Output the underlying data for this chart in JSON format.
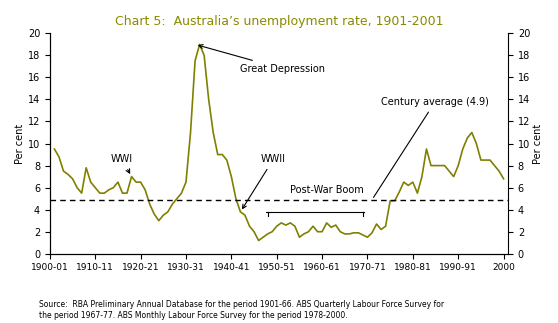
{
  "title": "Chart 5:  Australia’s unemployment rate, 1901-2001",
  "title_color": "#8B8B00",
  "ylabel_left": "Per cent",
  "ylabel_right": "Per cent",
  "source_text": "Source:  RBA Preliminary Annual Database for the period 1901-66. ABS Quarterly Labour Force Survey for\nthe period 1967-77. ABS Monthly Labour Force Survey for the period 1978-2000.",
  "line_color": "#808000",
  "average_line": 4.9,
  "ylim": [
    0,
    20
  ],
  "yticks": [
    0,
    2,
    4,
    6,
    8,
    10,
    12,
    14,
    16,
    18,
    20
  ],
  "xtick_labels": [
    "1900-01",
    "1910-11",
    "1920-21",
    "1930-31",
    "1940-41",
    "1950-51",
    "1960-61",
    "1970-71",
    "1980-81",
    "1990-91",
    "2000"
  ],
  "data": {
    "years": [
      1901,
      1902,
      1903,
      1904,
      1905,
      1906,
      1907,
      1908,
      1909,
      1910,
      1911,
      1912,
      1913,
      1914,
      1915,
      1916,
      1917,
      1918,
      1919,
      1920,
      1921,
      1922,
      1923,
      1924,
      1925,
      1926,
      1927,
      1928,
      1929,
      1930,
      1931,
      1932,
      1933,
      1934,
      1935,
      1936,
      1937,
      1938,
      1939,
      1940,
      1941,
      1942,
      1943,
      1944,
      1945,
      1946,
      1947,
      1948,
      1949,
      1950,
      1951,
      1952,
      1953,
      1954,
      1955,
      1956,
      1957,
      1958,
      1959,
      1960,
      1961,
      1962,
      1963,
      1964,
      1965,
      1966,
      1967,
      1968,
      1969,
      1970,
      1971,
      1972,
      1973,
      1974,
      1975,
      1976,
      1977,
      1978,
      1979,
      1980,
      1981,
      1982,
      1983,
      1984,
      1985,
      1986,
      1987,
      1988,
      1989,
      1990,
      1991,
      1992,
      1993,
      1994,
      1995,
      1996,
      1997,
      1998,
      1999,
      2000
    ],
    "values": [
      9.5,
      8.8,
      7.5,
      7.2,
      6.8,
      6.0,
      5.5,
      7.8,
      6.5,
      6.0,
      5.5,
      5.5,
      5.8,
      6.0,
      6.5,
      5.5,
      5.5,
      7.0,
      6.5,
      6.5,
      5.8,
      4.5,
      3.6,
      3.0,
      3.5,
      3.8,
      4.5,
      5.0,
      5.5,
      6.5,
      11.0,
      17.5,
      19.0,
      18.0,
      14.0,
      11.0,
      9.0,
      9.0,
      8.5,
      7.0,
      5.0,
      3.8,
      3.5,
      2.5,
      2.0,
      1.2,
      1.5,
      1.8,
      2.0,
      2.5,
      2.8,
      2.6,
      2.8,
      2.5,
      1.5,
      1.8,
      2.0,
      2.5,
      2.0,
      2.0,
      2.8,
      2.4,
      2.6,
      2.0,
      1.8,
      1.8,
      1.9,
      1.9,
      1.7,
      1.5,
      1.9,
      2.7,
      2.2,
      2.5,
      4.8,
      4.8,
      5.6,
      6.5,
      6.2,
      6.5,
      5.5,
      7.0,
      9.5,
      8.0,
      8.0,
      8.0,
      8.0,
      7.5,
      7.0,
      8.0,
      9.5,
      10.5,
      11.0,
      10.0,
      8.5,
      8.5,
      8.5,
      8.0,
      7.5,
      6.8
    ]
  }
}
